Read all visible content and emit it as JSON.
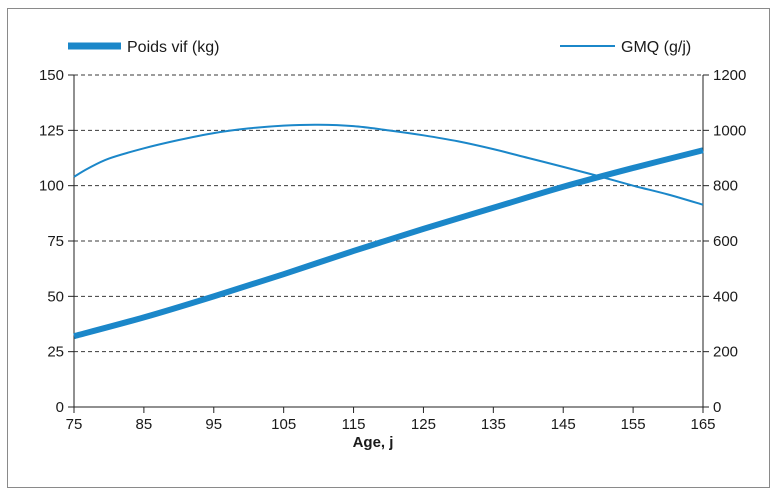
{
  "chart_data": {
    "type": "line",
    "xlabel": "Age, j",
    "xlim": [
      75,
      165
    ],
    "x_ticks": [
      75,
      85,
      95,
      105,
      115,
      125,
      135,
      145,
      155,
      165
    ],
    "y_left": {
      "lim": [
        0,
        150
      ],
      "ticks": [
        0,
        25,
        50,
        75,
        100,
        125,
        150
      ]
    },
    "y_right": {
      "lim": [
        0,
        1200
      ],
      "ticks": [
        0,
        200,
        400,
        600,
        800,
        1000,
        1200
      ]
    },
    "grid": "horizontal dashed",
    "legend_placement": "top",
    "series": [
      {
        "name": "Poids vif (kg)",
        "axis": "left",
        "color": "#1b87c9",
        "line": "thick",
        "x": [
          75,
          85,
          95,
          105,
          115,
          125,
          135,
          145,
          155,
          165
        ],
        "values": [
          32,
          40.5,
          50,
          60,
          70.5,
          80.5,
          90,
          99.5,
          108,
          116
        ]
      },
      {
        "name": "GMQ (g/j)",
        "axis": "right",
        "color": "#1b87c9",
        "line": "thin",
        "x": [
          75,
          77,
          80,
          85,
          90,
          95,
          100,
          105,
          110,
          115,
          120,
          125,
          130,
          135,
          140,
          145,
          150,
          155,
          160,
          165
        ],
        "values": [
          832,
          862,
          898,
          935,
          965,
          990,
          1007,
          1017,
          1020,
          1015,
          1000,
          982,
          960,
          932,
          900,
          868,
          835,
          800,
          768,
          731
        ]
      }
    ]
  }
}
